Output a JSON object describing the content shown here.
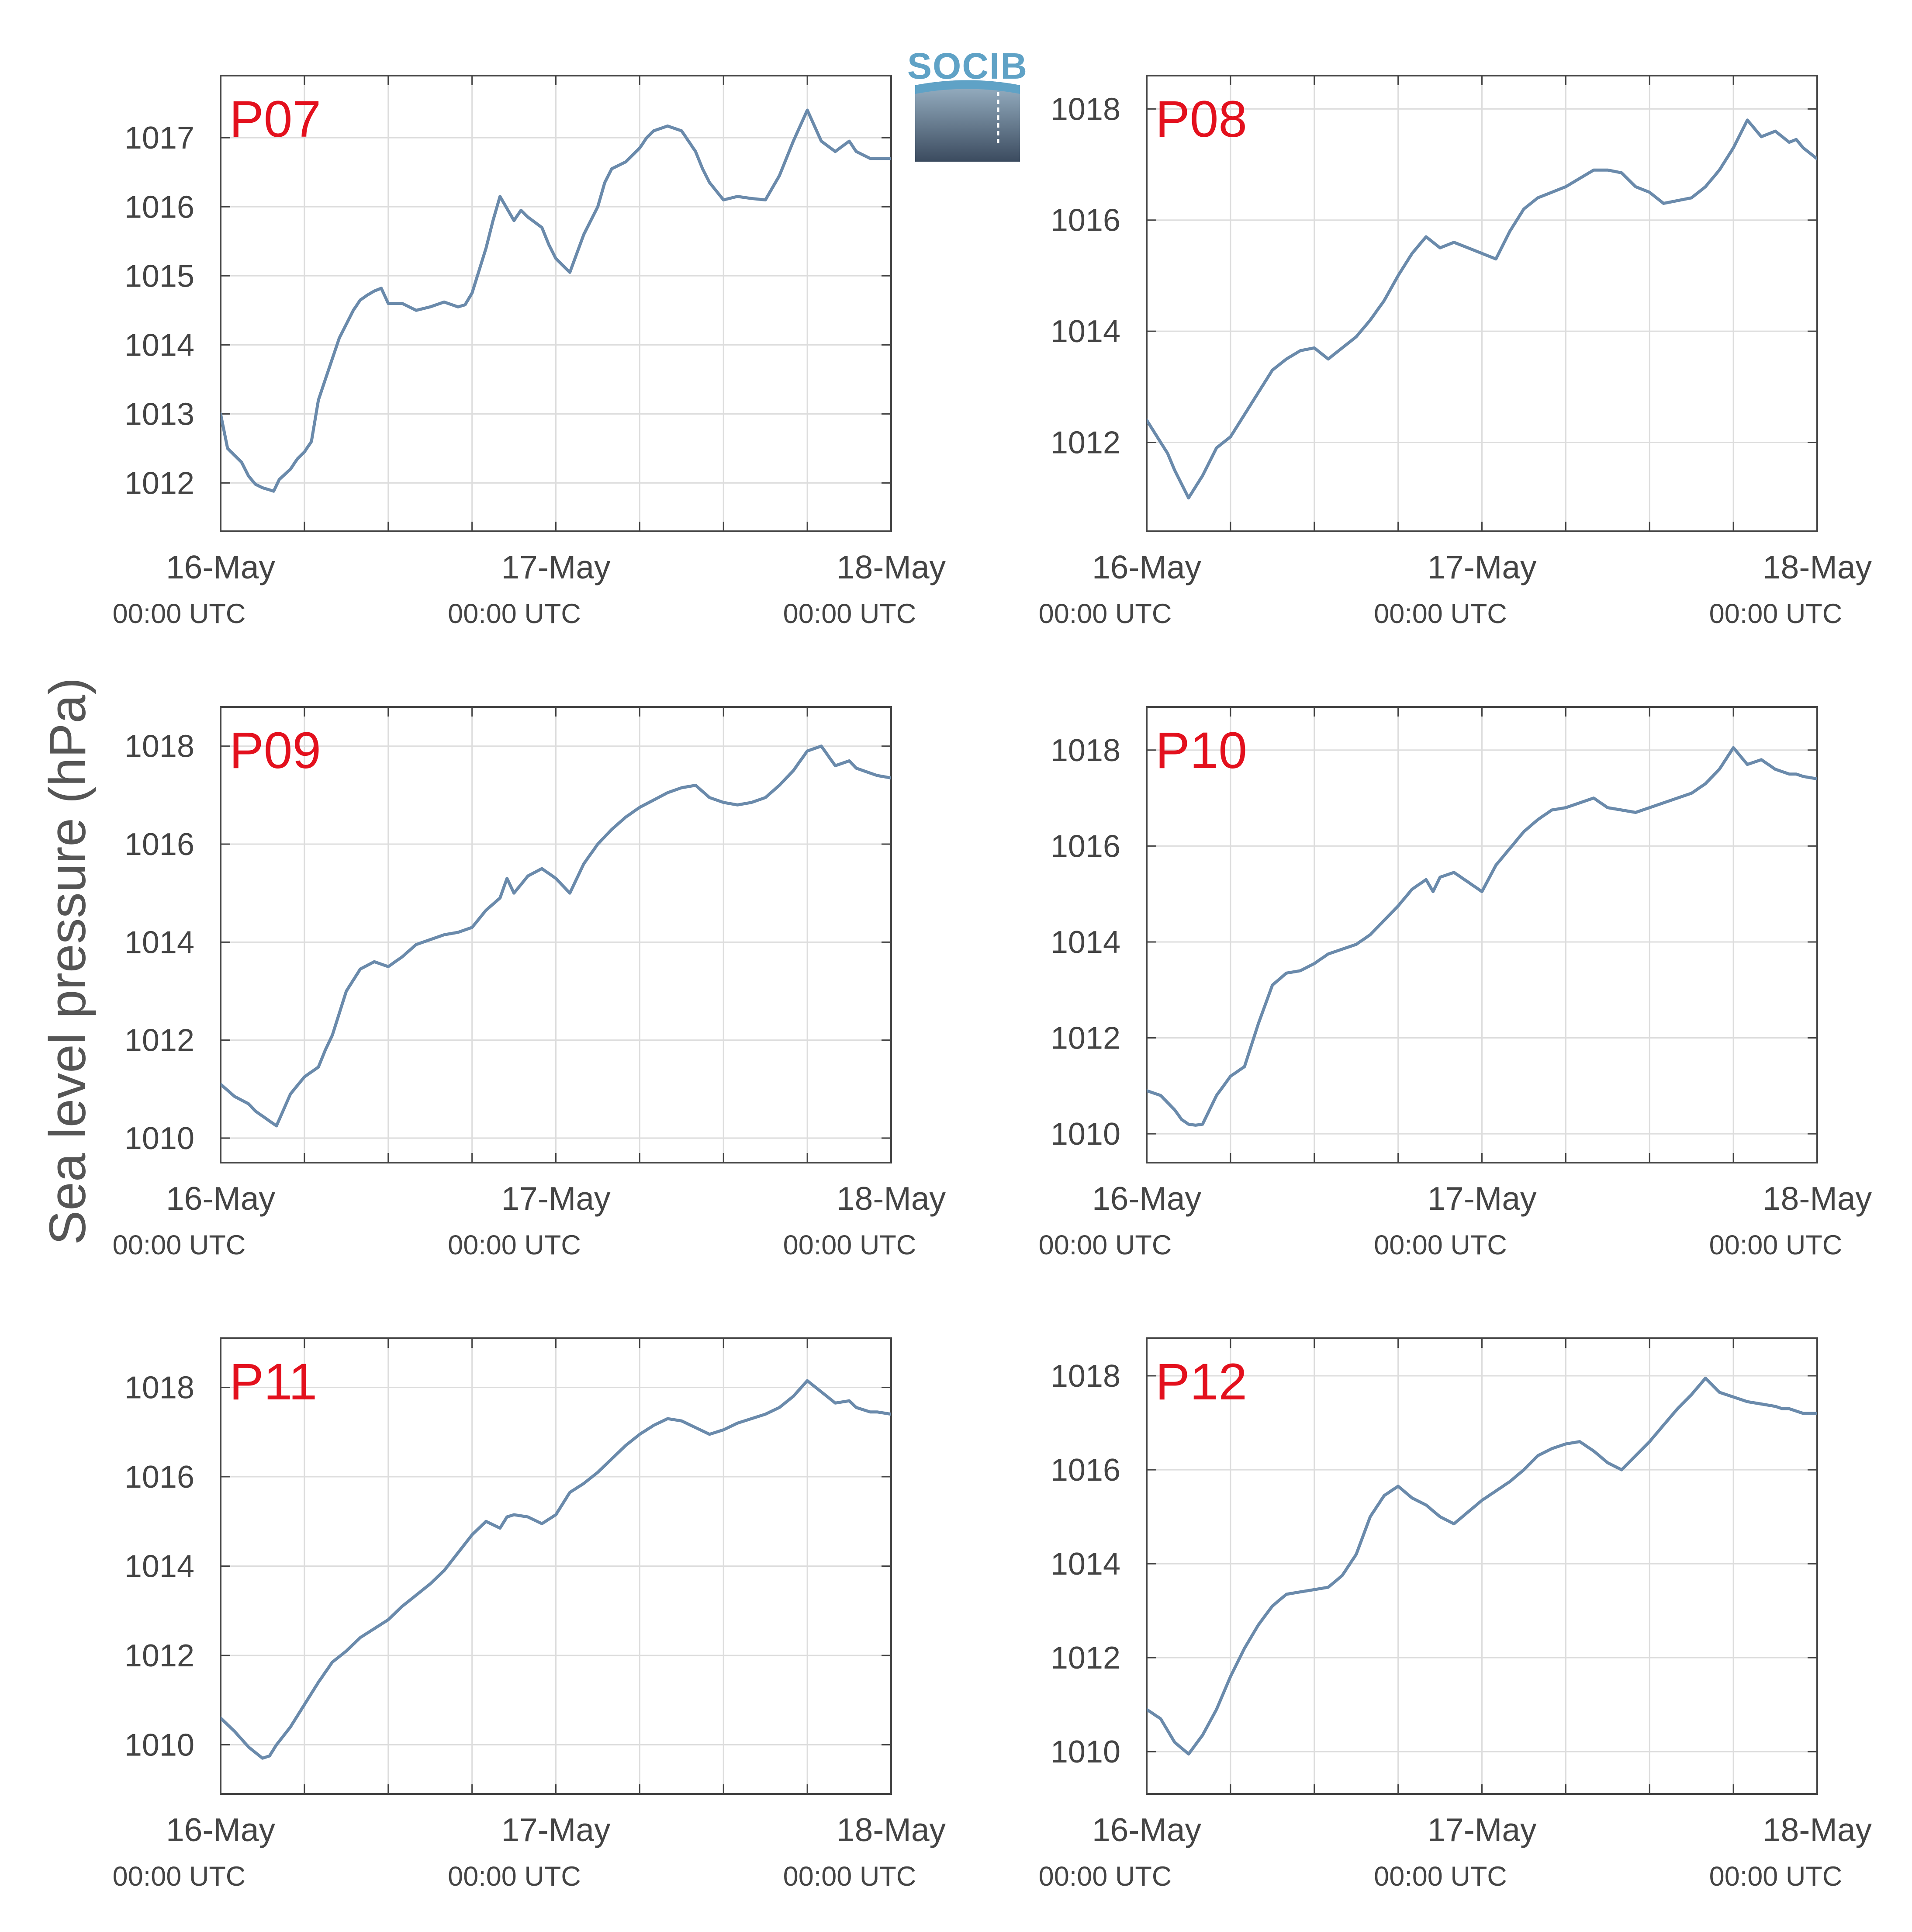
{
  "logo": {
    "text": "SOCIB"
  },
  "colors": {
    "line": "#6a8aab",
    "panel_label": "#e3101d",
    "grid": "#dddddd",
    "axes": "#444444"
  },
  "chart_data": {
    "type": "line",
    "ylabel": "Sea level pressure (hPa)",
    "x_ticks": [
      {
        "date": "16-May",
        "time": "00:00 UTC"
      },
      {
        "date": "17-May",
        "time": "00:00 UTC"
      },
      {
        "date": "18-May",
        "time": "00:00 UTC"
      }
    ],
    "xlim_hours": [
      0,
      48
    ],
    "grid": true,
    "panels": [
      {
        "name": "P07",
        "ylim": [
          1011.3,
          1017.9
        ],
        "yticks": [
          1012,
          1013,
          1014,
          1015,
          1016,
          1017
        ],
        "x": [
          0,
          0.5,
          1,
          1.5,
          2,
          2.5,
          3,
          3.5,
          3.8,
          4.2,
          5,
          5.5,
          6,
          6.5,
          7,
          7.5,
          8,
          8.5,
          9,
          9.5,
          10,
          10.5,
          11,
          11.5,
          12,
          13,
          13.5,
          14,
          15,
          16,
          17,
          17.5,
          18,
          19,
          19.5,
          20,
          21,
          21.5,
          22,
          23,
          23.5,
          24,
          24.5,
          25,
          26,
          27,
          27.5,
          28,
          29,
          30,
          30.5,
          31,
          32,
          33,
          34,
          34.5,
          35,
          36,
          37,
          38,
          39,
          40,
          41,
          42,
          43,
          44,
          45,
          45.5,
          46,
          46.5,
          47,
          47.5,
          48
        ],
        "y": [
          1013.0,
          1012.5,
          1012.4,
          1012.3,
          1012.1,
          1011.98,
          1011.93,
          1011.9,
          1011.88,
          1012.05,
          1012.2,
          1012.35,
          1012.45,
          1012.6,
          1013.2,
          1013.5,
          1013.8,
          1014.1,
          1014.3,
          1014.5,
          1014.65,
          1014.72,
          1014.78,
          1014.82,
          1014.6,
          1014.6,
          1014.55,
          1014.5,
          1014.55,
          1014.62,
          1014.55,
          1014.58,
          1014.75,
          1015.4,
          1015.8,
          1016.15,
          1015.8,
          1015.95,
          1015.85,
          1015.7,
          1015.45,
          1015.25,
          1015.15,
          1015.05,
          1015.6,
          1016.0,
          1016.35,
          1016.55,
          1016.65,
          1016.85,
          1017.0,
          1017.1,
          1017.17,
          1017.1,
          1016.8,
          1016.55,
          1016.35,
          1016.1,
          1016.15,
          1016.12,
          1016.1,
          1016.45,
          1016.95,
          1017.4,
          1016.95,
          1016.8,
          1016.95,
          1016.8,
          1016.75,
          1016.7,
          1016.7,
          1016.7,
          1016.7
        ]
      },
      {
        "name": "P08",
        "ylim": [
          1010.4,
          1018.6
        ],
        "yticks": [
          1012,
          1014,
          1016,
          1018
        ],
        "x": [
          0,
          0.5,
          1,
          1.5,
          2,
          3,
          3.5,
          4,
          5,
          6,
          7,
          8,
          9,
          10,
          11,
          12,
          12.5,
          13,
          14,
          14.5,
          15,
          16,
          17,
          18,
          19,
          20,
          21,
          22,
          23,
          24,
          25,
          26,
          27,
          28,
          29,
          30,
          31,
          32,
          33,
          34,
          35,
          36,
          37,
          38,
          39,
          40,
          41,
          42,
          43,
          44,
          45,
          46,
          46.5,
          47,
          48
        ],
        "y": [
          1012.4,
          1012.2,
          1012.0,
          1011.8,
          1011.5,
          1011.0,
          1011.2,
          1011.4,
          1011.9,
          1012.1,
          1012.5,
          1012.9,
          1013.3,
          1013.5,
          1013.65,
          1013.7,
          1013.6,
          1013.5,
          1013.7,
          1013.8,
          1013.9,
          1014.2,
          1014.55,
          1015.0,
          1015.4,
          1015.7,
          1015.5,
          1015.6,
          1015.5,
          1015.4,
          1015.3,
          1015.8,
          1016.2,
          1016.4,
          1016.5,
          1016.6,
          1016.75,
          1016.9,
          1016.9,
          1016.85,
          1016.6,
          1016.5,
          1016.3,
          1016.35,
          1016.4,
          1016.6,
          1016.9,
          1017.3,
          1017.8,
          1017.5,
          1017.6,
          1017.4,
          1017.45,
          1017.3,
          1017.1
        ]
      },
      {
        "name": "P09",
        "ylim": [
          1009.5,
          1018.8
        ],
        "yticks": [
          1010,
          1012,
          1014,
          1016,
          1018
        ],
        "x": [
          0,
          1,
          2,
          2.5,
          3,
          3.5,
          4,
          5,
          6,
          7,
          7.5,
          8,
          9,
          10,
          11,
          12,
          13,
          14,
          15,
          16,
          17,
          18,
          19,
          20,
          20.5,
          21,
          22,
          23,
          24,
          25,
          26,
          27,
          28,
          29,
          30,
          31,
          32,
          33,
          34,
          35,
          36,
          37,
          38,
          39,
          40,
          41,
          42,
          43,
          44,
          45,
          45.5,
          46,
          46.5,
          47,
          48
        ],
        "y": [
          1011.1,
          1010.85,
          1010.7,
          1010.55,
          1010.45,
          1010.35,
          1010.25,
          1010.9,
          1011.25,
          1011.45,
          1011.8,
          1012.1,
          1013.0,
          1013.45,
          1013.6,
          1013.5,
          1013.7,
          1013.95,
          1014.05,
          1014.15,
          1014.2,
          1014.3,
          1014.65,
          1014.9,
          1015.3,
          1015.0,
          1015.35,
          1015.5,
          1015.3,
          1015.0,
          1015.6,
          1016.0,
          1016.3,
          1016.55,
          1016.75,
          1016.9,
          1017.05,
          1017.15,
          1017.2,
          1016.95,
          1016.85,
          1016.8,
          1016.85,
          1016.95,
          1017.2,
          1017.5,
          1017.9,
          1018.0,
          1017.6,
          1017.7,
          1017.55,
          1017.5,
          1017.45,
          1017.4,
          1017.35
        ]
      },
      {
        "name": "P10",
        "ylim": [
          1009.4,
          1018.9
        ],
        "yticks": [
          1010,
          1012,
          1014,
          1016,
          1018
        ],
        "x": [
          0,
          1,
          2,
          2.5,
          3,
          3.5,
          4,
          5,
          6,
          7,
          8,
          9,
          10,
          11,
          12,
          13,
          14,
          15,
          16,
          17,
          18,
          19,
          20,
          20.5,
          21,
          22,
          23,
          24,
          25,
          26,
          27,
          28,
          29,
          30,
          31,
          32,
          33,
          34,
          35,
          36,
          37,
          38,
          39,
          40,
          41,
          42,
          43,
          44,
          45,
          45.5,
          46,
          46.5,
          47,
          48
        ],
        "y": [
          1010.9,
          1010.8,
          1010.5,
          1010.3,
          1010.2,
          1010.18,
          1010.2,
          1010.8,
          1011.2,
          1011.4,
          1012.3,
          1013.1,
          1013.35,
          1013.4,
          1013.55,
          1013.75,
          1013.85,
          1013.95,
          1014.15,
          1014.45,
          1014.75,
          1015.1,
          1015.3,
          1015.05,
          1015.35,
          1015.45,
          1015.25,
          1015.05,
          1015.6,
          1015.95,
          1016.3,
          1016.55,
          1016.75,
          1016.8,
          1016.9,
          1017.0,
          1016.8,
          1016.75,
          1016.7,
          1016.8,
          1016.9,
          1017.0,
          1017.1,
          1017.3,
          1017.6,
          1018.05,
          1017.7,
          1017.8,
          1017.6,
          1017.55,
          1017.5,
          1017.5,
          1017.45,
          1017.4
        ]
      },
      {
        "name": "P11",
        "ylim": [
          1008.9,
          1019.1
        ],
        "yticks": [
          1010,
          1012,
          1014,
          1016,
          1018
        ],
        "x": [
          0,
          1,
          2,
          3,
          3.5,
          4,
          5,
          6,
          7,
          8,
          9,
          10,
          11,
          12,
          13,
          14,
          15,
          16,
          17,
          18,
          19,
          20,
          20.5,
          21,
          22,
          23,
          24,
          25,
          26,
          27,
          28,
          29,
          30,
          31,
          32,
          33,
          34,
          35,
          36,
          37,
          38,
          39,
          40,
          41,
          42,
          43,
          44,
          45,
          45.5,
          46,
          46.5,
          47,
          48
        ],
        "y": [
          1010.6,
          1010.3,
          1009.95,
          1009.7,
          1009.75,
          1010.0,
          1010.4,
          1010.9,
          1011.4,
          1011.85,
          1012.1,
          1012.4,
          1012.6,
          1012.8,
          1013.1,
          1013.35,
          1013.6,
          1013.9,
          1014.3,
          1014.7,
          1015.0,
          1014.85,
          1015.1,
          1015.15,
          1015.1,
          1014.95,
          1015.15,
          1015.65,
          1015.85,
          1016.1,
          1016.4,
          1016.7,
          1016.95,
          1017.15,
          1017.3,
          1017.25,
          1017.1,
          1016.95,
          1017.05,
          1017.2,
          1017.3,
          1017.4,
          1017.55,
          1017.8,
          1018.15,
          1017.9,
          1017.65,
          1017.7,
          1017.55,
          1017.5,
          1017.45,
          1017.45,
          1017.4
        ]
      },
      {
        "name": "P12",
        "ylim": [
          1009.1,
          1018.8
        ],
        "yticks": [
          1010,
          1012,
          1014,
          1016,
          1018
        ],
        "x": [
          0,
          1,
          2,
          3,
          4,
          5,
          6,
          7,
          8,
          9,
          10,
          11,
          12,
          13,
          14,
          15,
          15.5,
          16,
          17,
          18,
          19,
          20,
          21,
          22,
          23,
          24,
          25,
          26,
          27,
          28,
          29,
          30,
          31,
          32,
          33,
          34,
          35,
          36,
          37,
          38,
          39,
          40,
          41,
          42,
          43,
          44,
          45,
          45.5,
          46,
          46.5,
          47,
          48
        ],
        "y": [
          1010.9,
          1010.7,
          1010.2,
          1009.95,
          1010.35,
          1010.9,
          1011.6,
          1012.2,
          1012.7,
          1013.1,
          1013.35,
          1013.4,
          1013.45,
          1013.5,
          1013.75,
          1014.2,
          1014.6,
          1015.0,
          1015.45,
          1015.65,
          1015.4,
          1015.25,
          1015.0,
          1014.85,
          1015.1,
          1015.35,
          1015.55,
          1015.75,
          1016.0,
          1016.3,
          1016.45,
          1016.55,
          1016.6,
          1016.4,
          1016.15,
          1016.0,
          1016.3,
          1016.6,
          1016.95,
          1017.3,
          1017.6,
          1017.95,
          1017.65,
          1017.55,
          1017.45,
          1017.4,
          1017.35,
          1017.3,
          1017.3,
          1017.25,
          1017.2,
          1017.2
        ]
      }
    ]
  }
}
